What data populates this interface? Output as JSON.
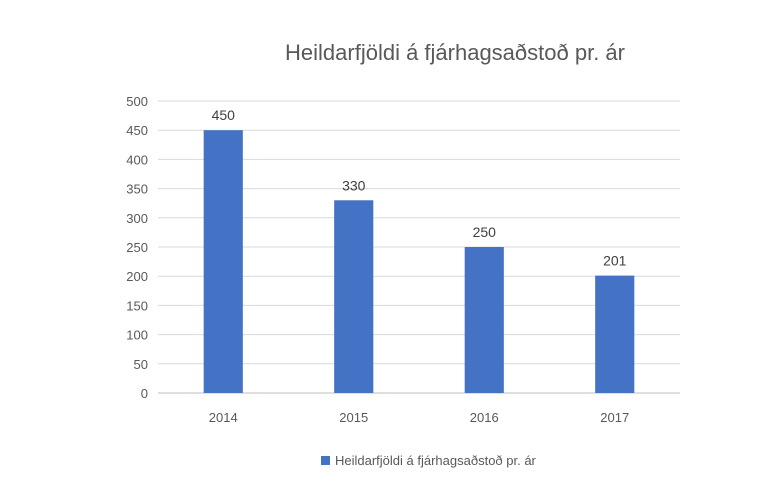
{
  "chart_data": {
    "type": "bar",
    "title": "Heildarfjöldi á fjárhagsaðstoð pr. ár",
    "categories": [
      "2014",
      "2015",
      "2016",
      "2017"
    ],
    "series": [
      {
        "name": "Heildarfjöldi á fjárhagsaðstoð pr. ár",
        "values": [
          450,
          330,
          250,
          201
        ],
        "color": "#4472c4"
      }
    ],
    "ylim": [
      0,
      500
    ],
    "yticks": [
      "0",
      "50",
      "100",
      "150",
      "200",
      "250",
      "300",
      "350",
      "400",
      "450",
      "500"
    ],
    "xlabel": "",
    "ylabel": "",
    "grid": true,
    "legend_position": "bottom",
    "data_labels": true
  }
}
